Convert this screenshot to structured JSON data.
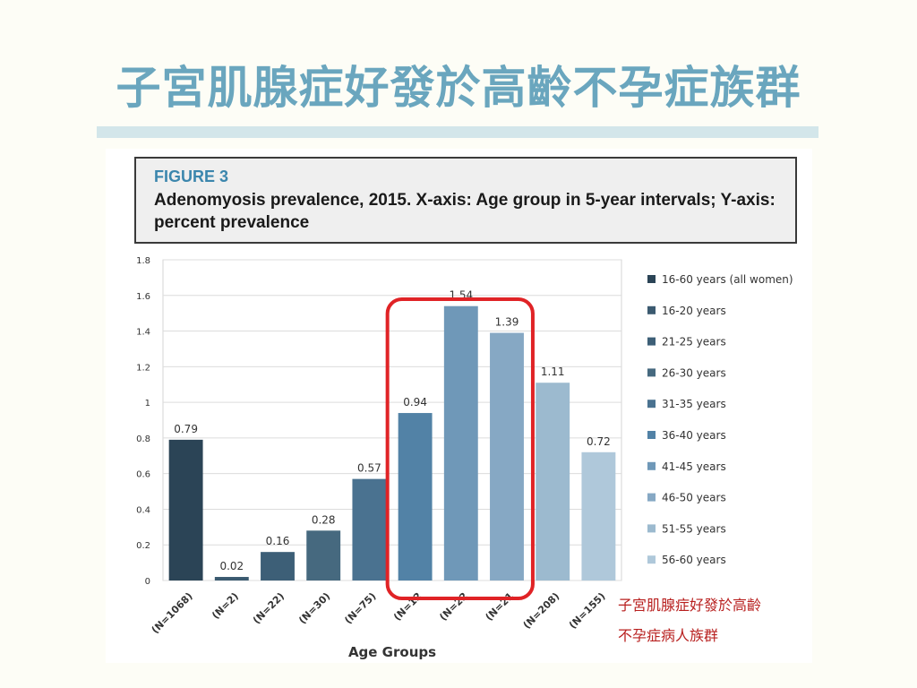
{
  "slide": {
    "title": "子宮肌腺症好發於高齡不孕症族群"
  },
  "figure": {
    "label": "FIGURE 3",
    "caption": "Adenomyosis prevalence, 2015. X-axis: Age group in 5-year intervals; Y-axis: percent prevalence"
  },
  "note": {
    "line1": "子宮肌腺症好發於高齡",
    "line2": "不孕症病人族群"
  },
  "chart_data": {
    "type": "bar",
    "categories": [
      "(N=1068)",
      "(N=2)",
      "(N=22)",
      "(N=30)",
      "(N=75)",
      "(N=12",
      "(N=22",
      "(N=21",
      "(N=208)",
      "(N=155)"
    ],
    "values": [
      0.79,
      0.02,
      0.16,
      0.28,
      0.57,
      0.94,
      1.54,
      1.39,
      1.11,
      0.72
    ],
    "value_labels": [
      "0.79",
      "0.02",
      "0.16",
      "0.28",
      "0.57",
      "0.94",
      "1.54",
      "1.39",
      "1.11",
      "0.72"
    ],
    "legend": [
      "16-60 years (all women)",
      "16-20 years",
      "21-25 years",
      "26-30 years",
      "31-35 years",
      "36-40 years",
      "41-45 years",
      "46-50 years",
      "51-55 years",
      "56-60 years"
    ],
    "colors": [
      "#2b4456",
      "#3b5a70",
      "#3d5f77",
      "#46697f",
      "#4a7290",
      "#5282a6",
      "#6f98b8",
      "#86a8c4",
      "#9cbacf",
      "#afc8da"
    ],
    "xlabel": "Age Groups",
    "ylabel": "",
    "ylim": [
      0,
      1.8
    ],
    "yticks": [
      "0",
      "0.2",
      "0.4",
      "0.6",
      "0.8",
      "1",
      "1.2",
      "1.4",
      "1.6",
      "1.8"
    ],
    "legend_position": "right",
    "grid": true,
    "highlight": {
      "from_index": 5,
      "to_index": 7,
      "color": "#e02326"
    }
  }
}
